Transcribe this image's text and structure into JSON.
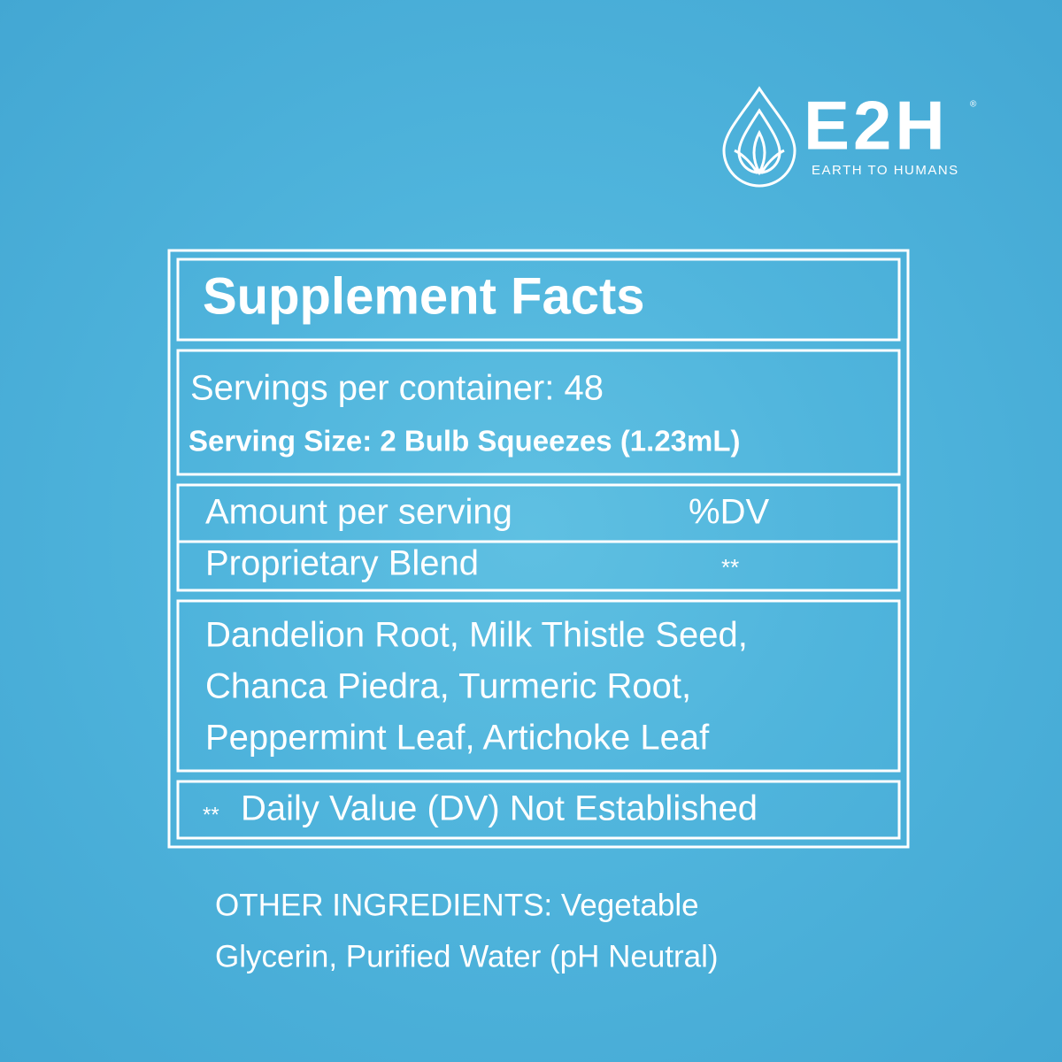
{
  "logo": {
    "brand": "E2H",
    "registered": "®",
    "tagline": "EARTH TO HUMANS"
  },
  "supplement_facts": {
    "title": "Supplement Facts",
    "servings_per_container": "Servings per container: 48",
    "serving_size": "Serving Size: 2 Bulb Squeezes (1.23mL)",
    "header": {
      "amount": "Amount per serving",
      "dv": "%DV"
    },
    "blend": {
      "name": "Proprietary Blend",
      "dv": "**"
    },
    "ingredients": [
      "Dandelion Root, Milk Thistle Seed,",
      "Chanca Piedra, Turmeric Root,",
      "Peppermint Leaf, Artichoke Leaf"
    ],
    "footnote": {
      "mark": "**",
      "text": "Daily Value (DV) Not Established"
    }
  },
  "other_ingredients": [
    "OTHER INGREDIENTS: Vegetable",
    "Glycerin, Purified Water (pH Neutral)"
  ]
}
